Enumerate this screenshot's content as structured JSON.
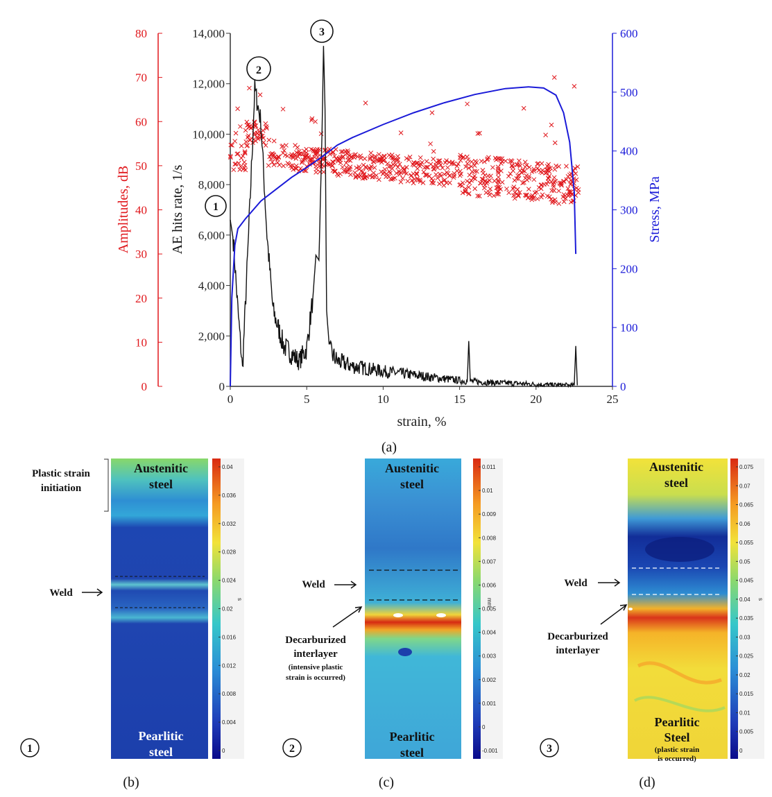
{
  "chart_data": {
    "type": "line",
    "xlabel": "strain, %",
    "x_ticks": [
      "0",
      "5",
      "10",
      "15",
      "20",
      "25"
    ],
    "xlim": [
      0,
      25
    ],
    "axes": {
      "amplitude": {
        "label": "Amplitudes, dB",
        "color": "#e0161b",
        "ylim": [
          0,
          80
        ],
        "ticks": [
          "0",
          "10",
          "20",
          "30",
          "40",
          "50",
          "60",
          "70",
          "80"
        ]
      },
      "hits": {
        "label": "AE hits rate, 1/s",
        "color": "#111111",
        "ylim": [
          0,
          14000
        ],
        "ticks": [
          "0",
          "2,000",
          "4,000",
          "6,000",
          "8,000",
          "10,000",
          "12,000",
          "14,000"
        ]
      },
      "stress": {
        "label": "Stress, MPa",
        "color": "#1a1ad8",
        "ylim": [
          0,
          600
        ],
        "ticks": [
          "0",
          "100",
          "200",
          "300",
          "400",
          "500",
          "600"
        ]
      }
    },
    "series": [
      {
        "axis": "stress",
        "x": [
          0,
          0.1,
          0.3,
          0.5,
          1.0,
          2.0,
          3.0,
          4.0,
          5.0,
          6.0,
          7.0,
          8.0,
          10.0,
          12.0,
          14.0,
          16.0,
          18.0,
          19.5,
          20.5,
          21.3,
          21.8,
          22.2,
          22.5,
          22.6
        ],
        "y": [
          0,
          150,
          240,
          268,
          285,
          315,
          335,
          355,
          372,
          390,
          410,
          423,
          445,
          465,
          482,
          496,
          506,
          509,
          507,
          495,
          465,
          415,
          330,
          225
        ]
      },
      {
        "axis": "hits",
        "x": [
          0,
          0.2,
          0.5,
          0.8,
          1.2,
          1.6,
          2.0,
          2.4,
          2.8,
          3.5,
          4.5,
          5.0,
          5.4,
          5.6,
          5.8,
          6.0,
          6.1,
          6.2,
          6.3,
          6.5,
          7.0,
          8.0,
          10.0,
          12.0,
          14.0,
          15.5,
          15.6,
          15.7,
          17.0,
          19.0,
          20.0,
          21.0,
          22.0,
          22.5,
          22.6,
          22.7
        ],
        "y": [
          6600,
          5800,
          3000,
          700,
          6000,
          11800,
          10500,
          6000,
          3000,
          1600,
          1000,
          1500,
          3500,
          5200,
          5000,
          10000,
          13500,
          11000,
          3000,
          1400,
          1000,
          800,
          600,
          450,
          300,
          200,
          1800,
          200,
          150,
          110,
          80,
          60,
          50,
          40,
          1600,
          40
        ]
      },
      {
        "axis": "amplitude",
        "kind": "scatter",
        "marker": "x"
      }
    ],
    "annotations": [
      "1",
      "2",
      "3"
    ]
  },
  "caption_a": "(a)",
  "panels": [
    {
      "label": "(b)",
      "number": "1",
      "top_text": [
        "Austenitic",
        "steel"
      ],
      "bottom_text": [
        "Pearlitic",
        "steel"
      ],
      "colorbar_ticks": [
        "0.04",
        "0.036",
        "0.032",
        "0.028",
        "0.024",
        "0.02",
        "0.016",
        "0.012",
        "0.008",
        "0.004",
        "0"
      ],
      "unit": "s",
      "annotations": {
        "initiation": [
          "Plastic strain",
          "initiation"
        ],
        "weld": "Weld"
      }
    },
    {
      "label": "(c)",
      "number": "2",
      "top_text": [
        "Austenitic",
        "steel"
      ],
      "bottom_text": [
        "Pearlitic",
        "steel"
      ],
      "colorbar_ticks": [
        "0.011",
        "0.01",
        "0.009",
        "0.008",
        "0.007",
        "0.006",
        "0.005",
        "0.004",
        "0.003",
        "0.002",
        "0.001",
        "0",
        "-0.001"
      ],
      "unit": "mm",
      "annotations": {
        "weld": "Weld",
        "decarb": [
          "Decarburized",
          "interlayer"
        ],
        "note": [
          "(intensive plastic",
          "strain is occurred)"
        ]
      }
    },
    {
      "label": "(d)",
      "number": "3",
      "top_text": [
        "Austenitic",
        "steel"
      ],
      "bottom_text": [
        "Pearlitic",
        "Steel"
      ],
      "colorbar_ticks": [
        "0.075",
        "0.07",
        "0.065",
        "0.06",
        "0.055",
        "0.05",
        "0.045",
        "0.04",
        "0.035",
        "0.03",
        "0.025",
        "0.02",
        "0.015",
        "0.01",
        "0.005",
        "0"
      ],
      "unit": "s",
      "annotations": {
        "weld": "Weld",
        "decarb": [
          "Decarburized",
          "interlayer"
        ],
        "note": [
          "(plastic strain",
          "is occurred)"
        ]
      }
    }
  ]
}
